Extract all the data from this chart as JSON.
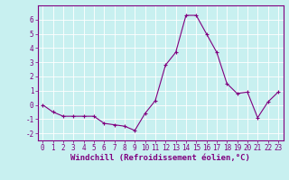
{
  "x": [
    0,
    1,
    2,
    3,
    4,
    5,
    6,
    7,
    8,
    9,
    10,
    11,
    12,
    13,
    14,
    15,
    16,
    17,
    18,
    19,
    20,
    21,
    22,
    23
  ],
  "y": [
    0.0,
    -0.5,
    -0.8,
    -0.8,
    -0.8,
    -0.8,
    -1.3,
    -1.4,
    -1.5,
    -1.8,
    -0.6,
    0.3,
    2.8,
    3.7,
    6.3,
    6.3,
    5.0,
    3.7,
    1.5,
    0.8,
    0.9,
    -0.9,
    0.2,
    0.9
  ],
  "line_color": "#800080",
  "marker": "+",
  "markersize": 3,
  "linewidth": 0.8,
  "markeredgewidth": 0.8,
  "xlabel": "Windchill (Refroidissement éolien,°C)",
  "ylabel": "",
  "title": "",
  "xlim": [
    -0.5,
    23.5
  ],
  "ylim": [
    -2.5,
    7.0
  ],
  "yticks": [
    -2,
    -1,
    0,
    1,
    2,
    3,
    4,
    5,
    6
  ],
  "xticks": [
    0,
    1,
    2,
    3,
    4,
    5,
    6,
    7,
    8,
    9,
    10,
    11,
    12,
    13,
    14,
    15,
    16,
    17,
    18,
    19,
    20,
    21,
    22,
    23
  ],
  "bg_color": "#c8f0f0",
  "grid_color": "#ffffff",
  "tick_color": "#800080",
  "label_color": "#800080",
  "tick_fontsize": 5.5,
  "xlabel_fontsize": 6.5,
  "spine_color": "#800080"
}
